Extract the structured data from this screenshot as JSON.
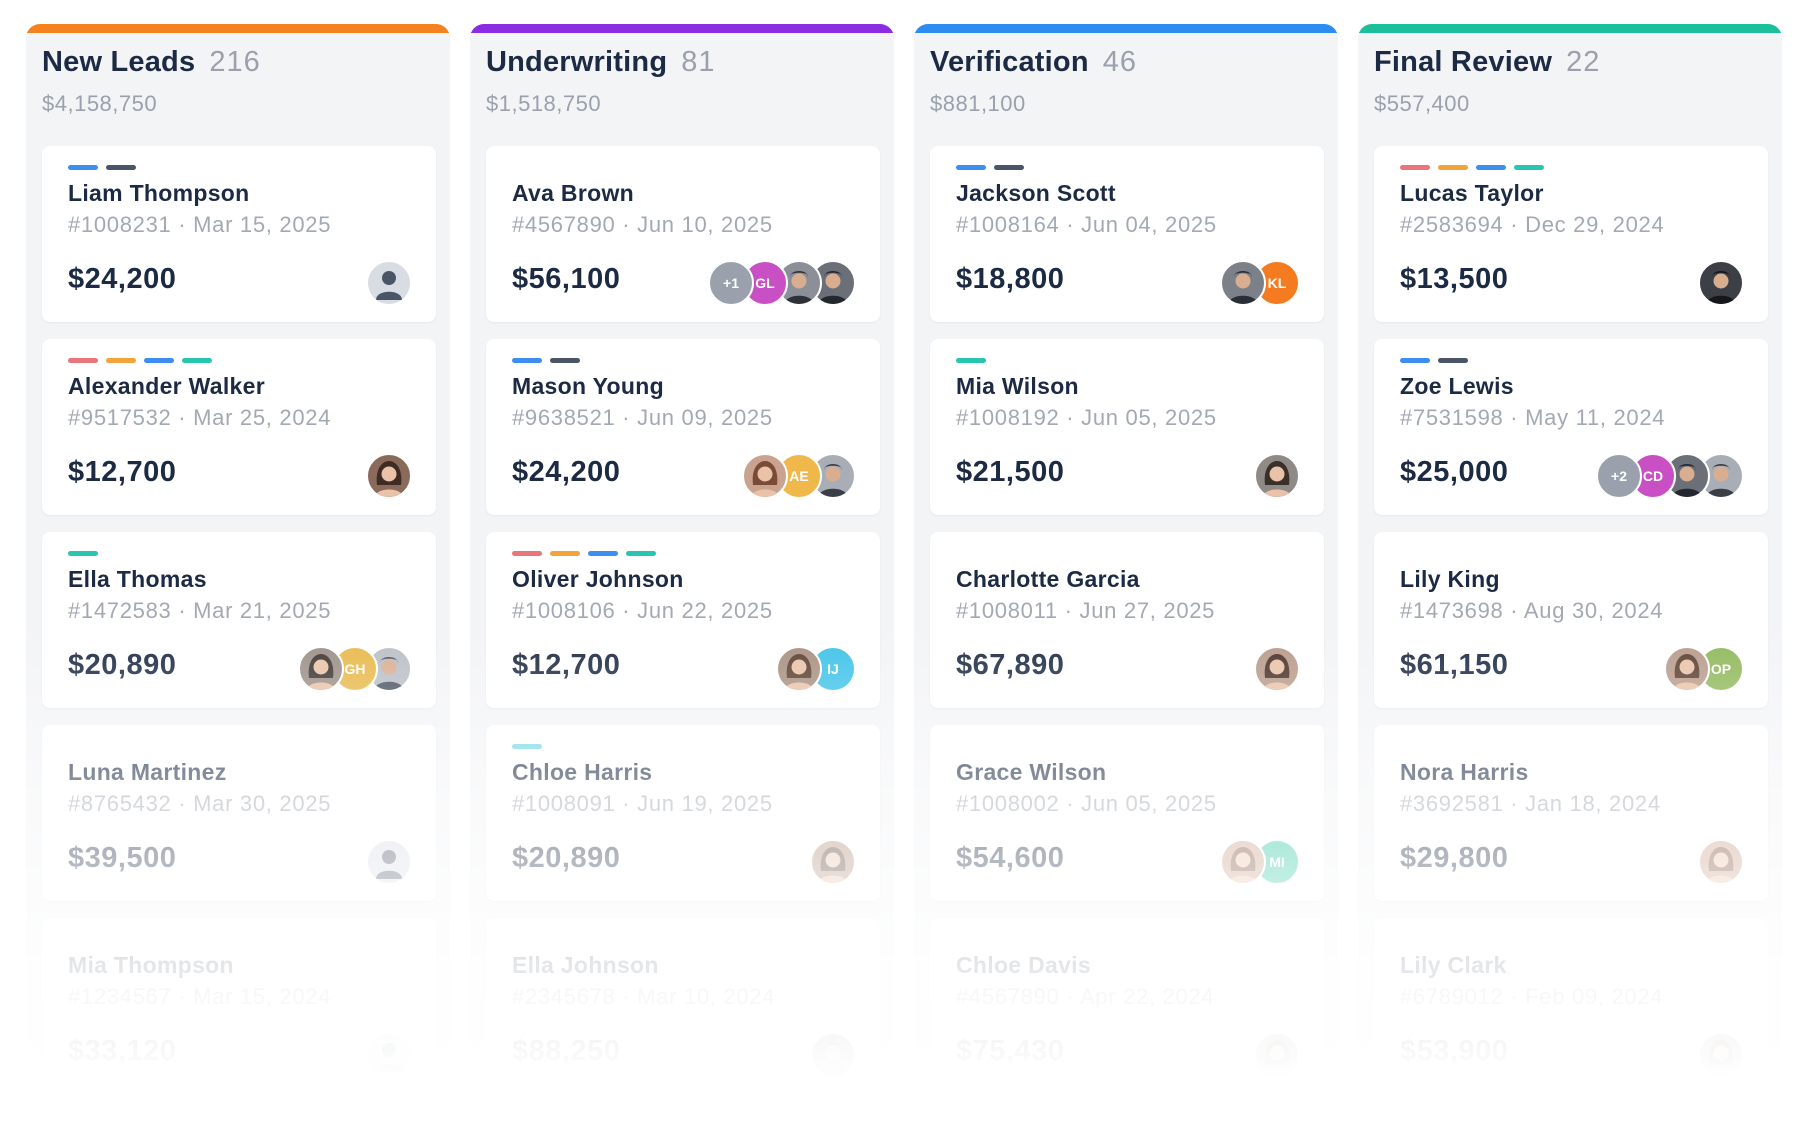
{
  "colors": {
    "tag_red": "#e8767a",
    "tag_orange": "#f2a33a",
    "tag_blue": "#3d8ef0",
    "tag_teal": "#28c6b0",
    "tag_slate": "#4a5568",
    "tag_cyan": "#6fd6e6"
  },
  "columns": [
    {
      "title": "New Leads",
      "count": "216",
      "total": "$4,158,750",
      "color": "#f4821f",
      "cards": [
        {
          "name": "Liam Thompson",
          "meta": "#1008231 · Mar 15, 2025",
          "amount": "$24,200",
          "tags": [
            "tag_blue",
            "tag_slate"
          ],
          "avatars": [
            {
              "kind": "generic-person-icon",
              "bg": "#d8dce3",
              "fg": "#4a5568"
            }
          ]
        },
        {
          "name": "Alexander Walker",
          "meta": "#9517532 · Mar 25, 2024",
          "amount": "$12,700",
          "tags": [
            "tag_red",
            "tag_orange",
            "tag_blue",
            "tag_teal"
          ],
          "avatars": [
            {
              "kind": "photo-woman-icon",
              "bg": "#8a6a5a",
              "fg": "#3d2b24"
            }
          ]
        },
        {
          "name": "Ella Thomas",
          "meta": "#1472583 · Mar 21, 2025",
          "amount": "$20,890",
          "tags": [
            "tag_teal"
          ],
          "avatars": [
            {
              "kind": "photo-man-icon",
              "bg": "#b9bec6",
              "fg": "#4b5360"
            },
            {
              "kind": "initials",
              "text": "GH",
              "bg": "#e8b84a"
            },
            {
              "kind": "photo-woman-icon",
              "bg": "#9a8f87",
              "fg": "#3d3430"
            }
          ]
        },
        {
          "name": "Luna Martinez",
          "meta": "#8765432 · Mar 30, 2025",
          "amount": "$39,500",
          "tags": [],
          "avatars": [
            {
              "kind": "generic-person-icon",
              "bg": "#d8dce3",
              "fg": "#4a5568"
            }
          ]
        },
        {
          "name": "Mia Thompson",
          "meta": "#1234567 · Mar 15, 2024",
          "amount": "$33,120",
          "tags": [],
          "avatars": [
            {
              "kind": "generic-person-icon",
              "bg": "#d8dce3",
              "fg": "#4a5568"
            }
          ]
        }
      ]
    },
    {
      "title": "Underwriting",
      "count": "81",
      "total": "$1,518,750",
      "color": "#8b2be2",
      "cards": [
        {
          "name": "Ava Brown",
          "meta": "#4567890 · Jun 10, 2025",
          "amount": "$56,100",
          "tags": [],
          "avatars": [
            {
              "kind": "photo-man-icon",
              "bg": "#6a6f78",
              "fg": "#23272e"
            },
            {
              "kind": "photo-man-icon",
              "bg": "#8a8f98",
              "fg": "#2e3238"
            },
            {
              "kind": "initials",
              "text": "GL",
              "bg": "#c84fc4"
            },
            {
              "kind": "initials",
              "text": "+1",
              "bg": "#9aa1ad"
            }
          ]
        },
        {
          "name": "Mason Young",
          "meta": "#9638521 · Jun 09, 2025",
          "amount": "$24,200",
          "tags": [
            "tag_blue",
            "tag_slate"
          ],
          "avatars": [
            {
              "kind": "photo-man-icon",
              "bg": "#a9aeb6",
              "fg": "#3a3f47"
            },
            {
              "kind": "initials",
              "text": "AE",
              "bg": "#f0b84a"
            },
            {
              "kind": "photo-woman-icon",
              "bg": "#c9a38f",
              "fg": "#7a4b36"
            }
          ]
        },
        {
          "name": "Oliver Johnson",
          "meta": "#1008106 · Jun 22, 2025",
          "amount": "$12,700",
          "tags": [
            "tag_red",
            "tag_orange",
            "tag_blue",
            "tag_teal"
          ],
          "avatars": [
            {
              "kind": "initials",
              "text": "IJ",
              "bg": "#3ec2e8"
            },
            {
              "kind": "photo-woman-icon",
              "bg": "#a88f80",
              "fg": "#5a3e30"
            }
          ]
        },
        {
          "name": "Chloe Harris",
          "meta": "#1008091 · Jun 19, 2025",
          "amount": "$20,890",
          "tags": [
            "tag_cyan"
          ],
          "avatars": [
            {
              "kind": "photo-woman-icon",
              "bg": "#b08f7c",
              "fg": "#5a3e30"
            }
          ]
        },
        {
          "name": "Ella Johnson",
          "meta": "#2345678 · Mar 10, 2024",
          "amount": "$88,250",
          "tags": [],
          "avatars": [
            {
              "kind": "photo-man-icon",
              "bg": "#6a6f78",
              "fg": "#23272e"
            }
          ]
        }
      ]
    },
    {
      "title": "Verification",
      "count": "46",
      "total": "$881,100",
      "color": "#2d8cf0",
      "cards": [
        {
          "name": "Jackson Scott",
          "meta": "#1008164 · Jun 04, 2025",
          "amount": "$18,800",
          "tags": [
            "tag_blue",
            "tag_slate"
          ],
          "avatars": [
            {
              "kind": "initials",
              "text": "KL",
              "bg": "#f47b20"
            },
            {
              "kind": "photo-man-icon",
              "bg": "#7c8189",
              "fg": "#2a2e35"
            }
          ]
        },
        {
          "name": "Mia Wilson",
          "meta": "#1008192 · Jun 05, 2025",
          "amount": "$21,500",
          "tags": [
            "tag_teal"
          ],
          "avatars": [
            {
              "kind": "photo-woman-icon",
              "bg": "#8f8a86",
              "fg": "#3a302b"
            }
          ]
        },
        {
          "name": "Charlotte Garcia",
          "meta": "#1008011 · Jun 27, 2025",
          "amount": "$67,890",
          "tags": [],
          "avatars": [
            {
              "kind": "photo-woman-icon",
              "bg": "#b89a8a",
              "fg": "#4a3026"
            }
          ]
        },
        {
          "name": "Grace Wilson",
          "meta": "#1008002 · Jun 05, 2025",
          "amount": "$54,600",
          "tags": [],
          "avatars": [
            {
              "kind": "initials",
              "text": "MI",
              "bg": "#28c6a0"
            },
            {
              "kind": "photo-woman-icon",
              "bg": "#c99f8a",
              "fg": "#7a4b36"
            }
          ]
        },
        {
          "name": "Chloe Davis",
          "meta": "#4567890 · Apr 22, 2024",
          "amount": "$75,430",
          "tags": [],
          "avatars": [
            {
              "kind": "photo-woman-icon",
              "bg": "#8f8a86",
              "fg": "#3a302b"
            }
          ]
        }
      ]
    },
    {
      "title": "Final Review",
      "count": "22",
      "total": "$557,400",
      "color": "#1cbf9b",
      "cards": [
        {
          "name": "Lucas Taylor",
          "meta": "#2583694 · Dec 29, 2024",
          "amount": "$13,500",
          "tags": [
            "tag_red",
            "tag_orange",
            "tag_blue",
            "tag_teal"
          ],
          "avatars": [
            {
              "kind": "photo-man-icon",
              "bg": "#3c3f45",
              "fg": "#15171a"
            }
          ]
        },
        {
          "name": "Zoe Lewis",
          "meta": "#7531598 · May 11, 2024",
          "amount": "$25,000",
          "tags": [
            "tag_blue",
            "tag_slate"
          ],
          "avatars": [
            {
              "kind": "photo-man-icon",
              "bg": "#a9aeb6",
              "fg": "#3a3f47"
            },
            {
              "kind": "photo-man-icon",
              "bg": "#6a6f78",
              "fg": "#23272e"
            },
            {
              "kind": "initials",
              "text": "CD",
              "bg": "#c84fc4"
            },
            {
              "kind": "initials",
              "text": "+2",
              "bg": "#9aa1ad"
            }
          ]
        },
        {
          "name": "Lily King",
          "meta": "#1473698 · Aug 30, 2024",
          "amount": "$61,150",
          "tags": [],
          "avatars": [
            {
              "kind": "initials",
              "text": "OP",
              "bg": "#8fb85a"
            },
            {
              "kind": "photo-woman-icon",
              "bg": "#b89a8a",
              "fg": "#5a3e30"
            }
          ]
        },
        {
          "name": "Nora Harris",
          "meta": "#3692581 · Jan 18, 2024",
          "amount": "$29,800",
          "tags": [],
          "avatars": [
            {
              "kind": "photo-woman-icon",
              "bg": "#c99f8a",
              "fg": "#7a4b36"
            }
          ]
        },
        {
          "name": "Lily Clark",
          "meta": "#6789012 · Feb 09, 2024",
          "amount": "$53,900",
          "tags": [],
          "avatars": [
            {
              "kind": "photo-woman-icon",
              "bg": "#8f8a86",
              "fg": "#3a302b"
            }
          ]
        }
      ]
    }
  ]
}
